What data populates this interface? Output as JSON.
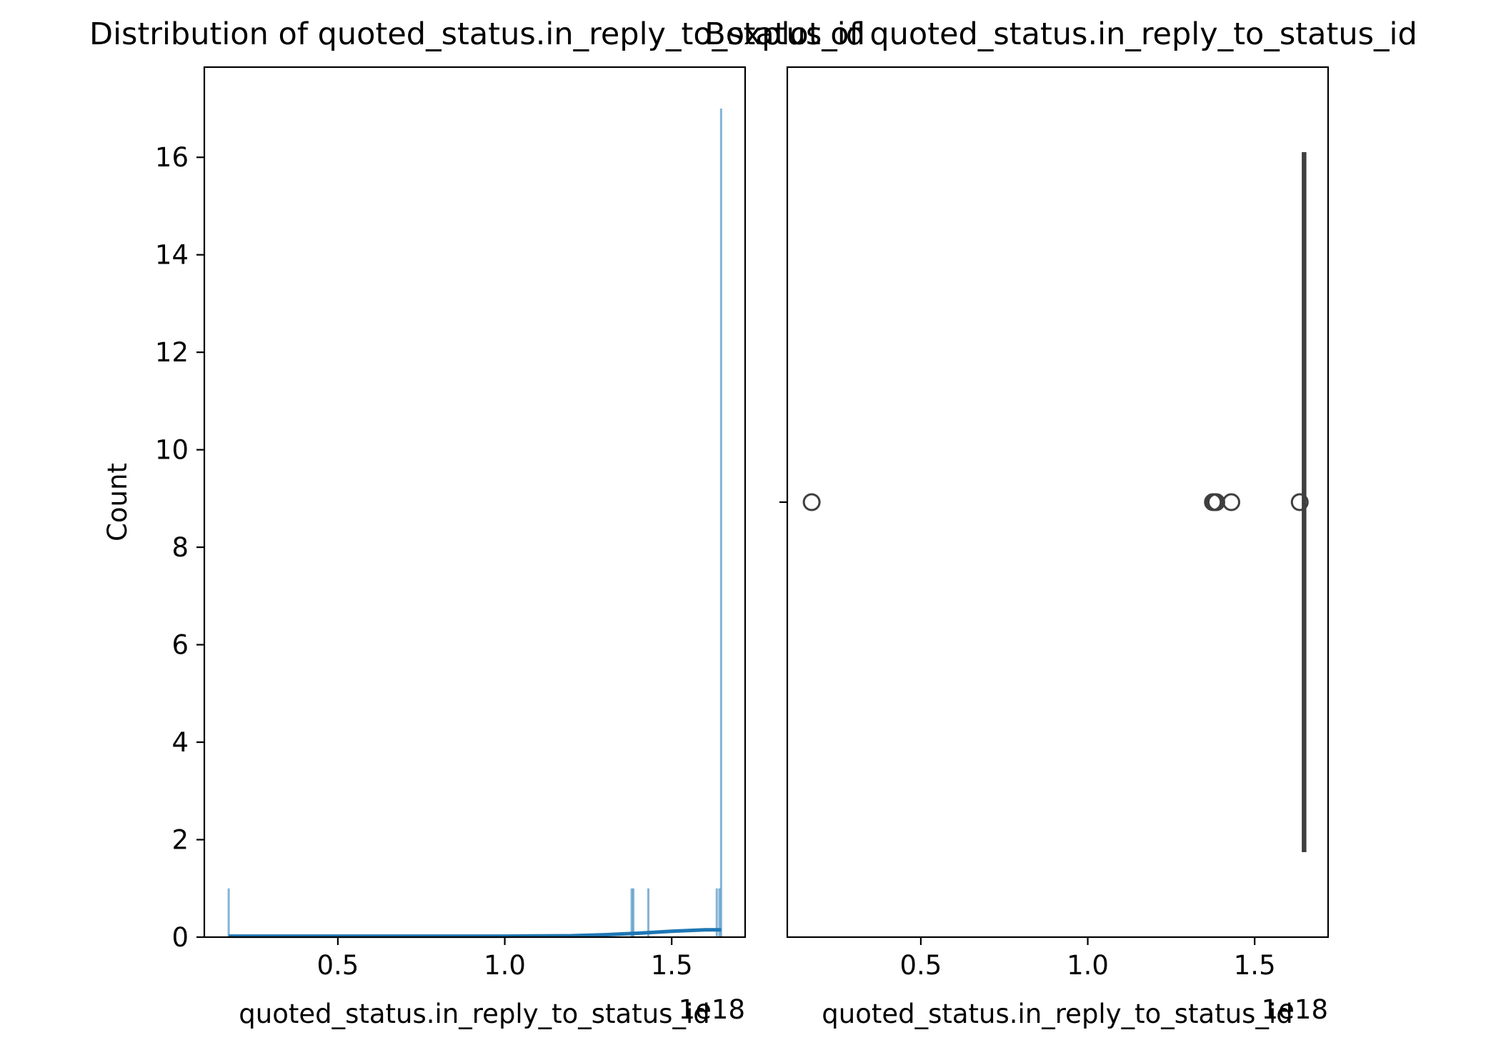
{
  "chart_data": [
    {
      "type": "histogram",
      "title": "Distribution of quoted_status.in_reply_to_status_id",
      "xlabel": "quoted_status.in_reply_to_status_id",
      "ylabel": "Count",
      "x_offset_label": "1e18",
      "xlim": [
        0.1,
        1.72
      ],
      "ylim": [
        0,
        17.85
      ],
      "x_ticks": [
        0.5,
        1.0,
        1.5
      ],
      "x_tick_labels": [
        "0.5",
        "1.0",
        "1.5"
      ],
      "y_ticks": [
        0,
        2,
        4,
        6,
        8,
        10,
        12,
        14,
        16
      ],
      "y_tick_labels": [
        "0",
        "2",
        "4",
        "6",
        "8",
        "10",
        "12",
        "14",
        "16"
      ],
      "bars": [
        {
          "x": 0.173,
          "count": 1
        },
        {
          "x": 1.38,
          "count": 1
        },
        {
          "x": 1.385,
          "count": 1
        },
        {
          "x": 1.43,
          "count": 1
        },
        {
          "x": 1.635,
          "count": 1
        },
        {
          "x": 1.643,
          "count": 1
        },
        {
          "x": 1.648,
          "count": 17
        }
      ],
      "kde": {
        "x": [
          0.173,
          0.5,
          0.8,
          1.0,
          1.1,
          1.2,
          1.3,
          1.4,
          1.5,
          1.6,
          1.648
        ],
        "y": [
          0.02,
          0.02,
          0.02,
          0.02,
          0.025,
          0.03,
          0.05,
          0.08,
          0.12,
          0.15,
          0.15
        ]
      },
      "bar_color": "#1f77b4",
      "kde_color": "#1f77b4"
    },
    {
      "type": "boxplot",
      "title": "Boxplot of quoted_status.in_reply_to_status_id",
      "xlabel": "quoted_status.in_reply_to_status_id",
      "x_offset_label": "1e18",
      "xlim": [
        0.1,
        1.72
      ],
      "x_ticks": [
        0.5,
        1.0,
        1.5
      ],
      "x_tick_labels": [
        "0.5",
        "1.0",
        "1.5"
      ],
      "box": {
        "q1": 1.6475,
        "median": 1.648,
        "q3": 1.6485,
        "whisker_low": 1.646,
        "whisker_high": 1.6495
      },
      "outliers": [
        0.173,
        1.375,
        1.38,
        1.385,
        1.43,
        1.635
      ],
      "color": "#3f3f3f"
    }
  ]
}
